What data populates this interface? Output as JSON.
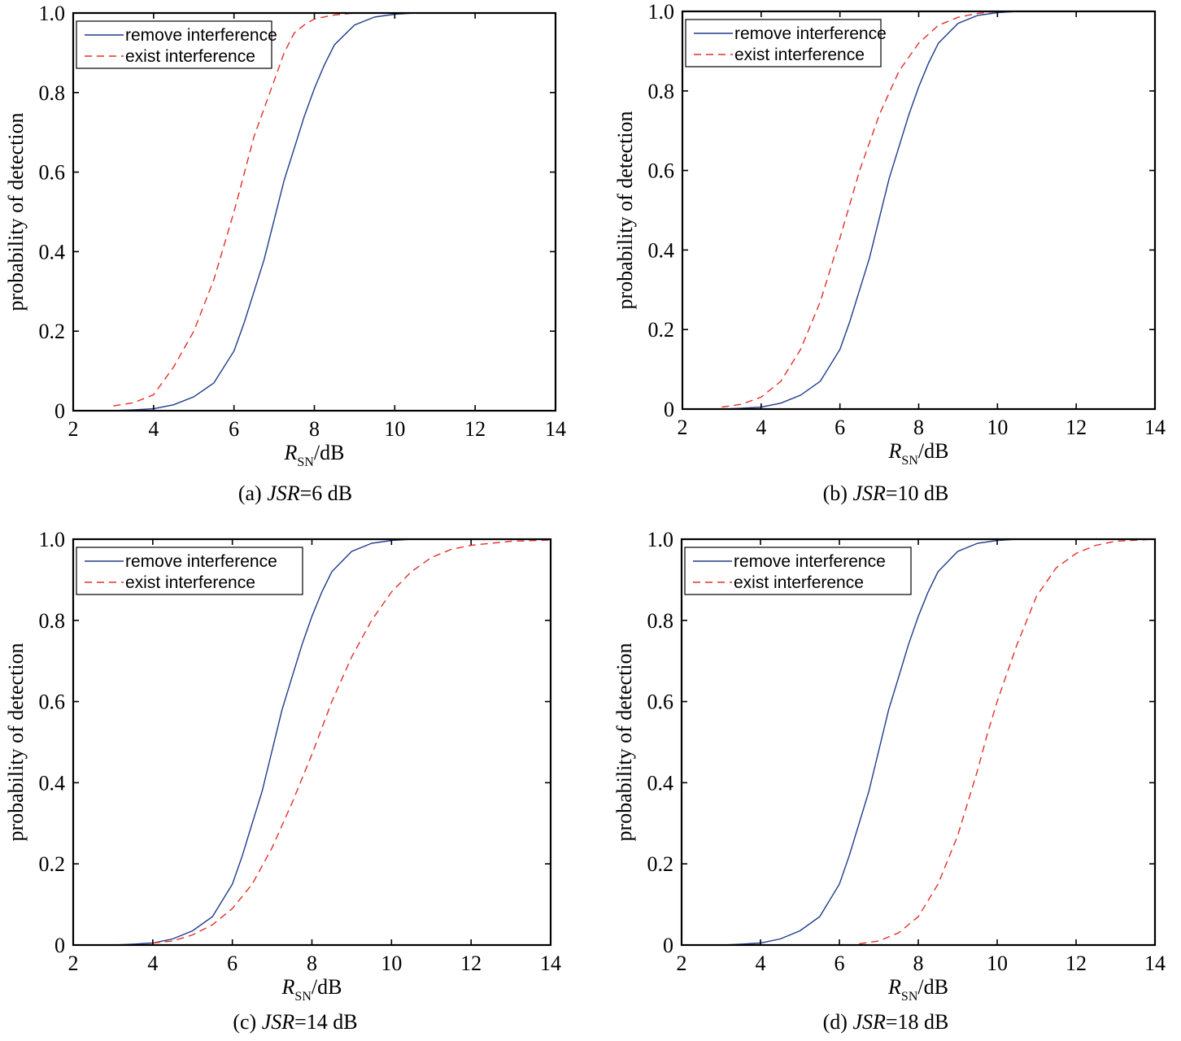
{
  "chart_data": [
    {
      "type": "line",
      "caption_prefix": "(a) ",
      "caption_var": "JSR",
      "caption_suffix": "=6 dB",
      "xlabel_main": "R",
      "xlabel_sub": "SN",
      "xlabel_unit": "/dB",
      "ylabel": "probability of detection",
      "xlim": [
        2,
        14
      ],
      "ylim": [
        0,
        1.0
      ],
      "xticks": [
        "2",
        "4",
        "6",
        "8",
        "10",
        "12",
        "14"
      ],
      "yticks": [
        "0",
        "0.2",
        "0.4",
        "0.6",
        "0.8",
        "1.0"
      ],
      "grid": false,
      "legend": "top-left",
      "series": [
        {
          "name": "remove interference",
          "color": "#1f3a8a",
          "dash": "solid",
          "x": [
            3,
            3.5,
            4,
            4.5,
            5,
            5.5,
            6,
            6.25,
            6.5,
            6.75,
            7,
            7.25,
            7.5,
            7.75,
            8,
            8.25,
            8.5,
            9,
            9.5,
            10,
            10.5,
            11,
            14
          ],
          "y": [
            0,
            0.002,
            0.005,
            0.015,
            0.035,
            0.07,
            0.15,
            0.22,
            0.3,
            0.38,
            0.48,
            0.58,
            0.66,
            0.74,
            0.81,
            0.87,
            0.92,
            0.97,
            0.99,
            0.997,
            1.0,
            1.0,
            1.0
          ]
        },
        {
          "name": "exist interference",
          "color": "#e0302a",
          "dash": "dashed",
          "x": [
            3,
            3.5,
            4,
            4.5,
            5,
            5.5,
            6,
            6.5,
            7,
            7.25,
            7.5,
            7.75,
            8,
            8.5,
            9,
            9.5,
            10,
            14
          ],
          "y": [
            0.012,
            0.02,
            0.04,
            0.11,
            0.2,
            0.33,
            0.5,
            0.69,
            0.83,
            0.9,
            0.95,
            0.97,
            0.985,
            0.995,
            1.0,
            1.0,
            1.0,
            1.0
          ]
        }
      ]
    },
    {
      "type": "line",
      "caption_prefix": "(b) ",
      "caption_var": "JSR",
      "caption_suffix": "=10 dB",
      "xlabel_main": "R",
      "xlabel_sub": "SN",
      "xlabel_unit": "/dB",
      "ylabel": "probability of detection",
      "xlim": [
        2,
        14
      ],
      "ylim": [
        0,
        1.0
      ],
      "xticks": [
        "2",
        "4",
        "6",
        "8",
        "10",
        "12",
        "14"
      ],
      "yticks": [
        "0",
        "0.2",
        "0.4",
        "0.6",
        "0.8",
        "1.0"
      ],
      "grid": false,
      "legend": "top-left",
      "series": [
        {
          "name": "remove interference",
          "color": "#1f3a8a",
          "dash": "solid",
          "x": [
            3,
            3.5,
            4,
            4.5,
            5,
            5.5,
            6,
            6.25,
            6.5,
            6.75,
            7,
            7.25,
            7.5,
            7.75,
            8,
            8.25,
            8.5,
            9,
            9.5,
            10,
            10.5,
            14
          ],
          "y": [
            0,
            0.002,
            0.005,
            0.015,
            0.035,
            0.07,
            0.15,
            0.22,
            0.3,
            0.38,
            0.48,
            0.58,
            0.66,
            0.74,
            0.81,
            0.87,
            0.92,
            0.97,
            0.99,
            0.997,
            1.0,
            1.0
          ]
        },
        {
          "name": "exist interference",
          "color": "#e0302a",
          "dash": "dashed",
          "x": [
            3,
            3.5,
            4,
            4.5,
            5,
            5.5,
            6,
            6.5,
            7,
            7.5,
            8,
            8.5,
            9,
            9.5,
            10,
            14
          ],
          "y": [
            0.005,
            0.012,
            0.03,
            0.07,
            0.15,
            0.27,
            0.43,
            0.6,
            0.74,
            0.85,
            0.92,
            0.965,
            0.985,
            0.995,
            1.0,
            1.0
          ]
        }
      ]
    },
    {
      "type": "line",
      "caption_prefix": "(c) ",
      "caption_var": "JSR",
      "caption_suffix": "=14 dB",
      "xlabel_main": "R",
      "xlabel_sub": "SN",
      "xlabel_unit": "/dB",
      "ylabel": "probability of detection",
      "xlim": [
        2,
        14
      ],
      "ylim": [
        0,
        1.0
      ],
      "xticks": [
        "2",
        "4",
        "6",
        "8",
        "10",
        "12",
        "14"
      ],
      "yticks": [
        "0",
        "0.2",
        "0.4",
        "0.6",
        "0.8",
        "1.0"
      ],
      "grid": false,
      "legend": "top-left",
      "series": [
        {
          "name": "remove interference",
          "color": "#1f3a8a",
          "dash": "solid",
          "x": [
            3,
            3.5,
            4,
            4.5,
            5,
            5.5,
            6,
            6.25,
            6.5,
            6.75,
            7,
            7.25,
            7.5,
            7.75,
            8,
            8.25,
            8.5,
            9,
            9.5,
            10,
            10.5,
            14
          ],
          "y": [
            0,
            0.002,
            0.005,
            0.015,
            0.035,
            0.07,
            0.15,
            0.22,
            0.3,
            0.38,
            0.48,
            0.58,
            0.66,
            0.74,
            0.81,
            0.87,
            0.92,
            0.97,
            0.99,
            0.997,
            1.0,
            1.0
          ]
        },
        {
          "name": "exist interference",
          "color": "#e0302a",
          "dash": "dashed",
          "x": [
            4,
            4.5,
            5,
            5.5,
            6,
            6.5,
            7,
            7.5,
            8,
            8.5,
            9,
            9.5,
            10,
            10.5,
            11,
            11.5,
            12,
            13,
            14
          ],
          "y": [
            0.005,
            0.01,
            0.025,
            0.05,
            0.09,
            0.15,
            0.24,
            0.35,
            0.47,
            0.6,
            0.71,
            0.8,
            0.87,
            0.92,
            0.955,
            0.975,
            0.985,
            0.995,
            0.998
          ]
        }
      ]
    },
    {
      "type": "line",
      "caption_prefix": "(d) ",
      "caption_var": "JSR",
      "caption_suffix": "=18 dB",
      "xlabel_main": "R",
      "xlabel_sub": "SN",
      "xlabel_unit": "/dB",
      "ylabel": "probability of detection",
      "xlim": [
        2,
        14
      ],
      "ylim": [
        0,
        1.0
      ],
      "xticks": [
        "2",
        "4",
        "6",
        "8",
        "10",
        "12",
        "14"
      ],
      "yticks": [
        "0",
        "0.2",
        "0.4",
        "0.6",
        "0.8",
        "1.0"
      ],
      "grid": false,
      "legend": "top-left",
      "series": [
        {
          "name": "remove interference",
          "color": "#1f3a8a",
          "dash": "solid",
          "x": [
            3,
            3.5,
            4,
            4.5,
            5,
            5.5,
            6,
            6.25,
            6.5,
            6.75,
            7,
            7.25,
            7.5,
            7.75,
            8,
            8.25,
            8.5,
            9,
            9.5,
            10,
            10.5,
            14
          ],
          "y": [
            0,
            0.002,
            0.005,
            0.015,
            0.035,
            0.07,
            0.15,
            0.22,
            0.3,
            0.38,
            0.48,
            0.58,
            0.66,
            0.74,
            0.81,
            0.87,
            0.92,
            0.97,
            0.99,
            0.997,
            1.0,
            1.0
          ]
        },
        {
          "name": "exist interference",
          "color": "#e0302a",
          "dash": "dashed",
          "x": [
            6.5,
            7,
            7.5,
            8,
            8.5,
            9,
            9.25,
            9.5,
            9.75,
            10,
            10.5,
            11,
            11.5,
            12,
            12.5,
            13,
            14
          ],
          "y": [
            0.003,
            0.01,
            0.03,
            0.07,
            0.15,
            0.27,
            0.35,
            0.43,
            0.52,
            0.6,
            0.74,
            0.86,
            0.93,
            0.965,
            0.985,
            0.995,
            1.0
          ]
        }
      ]
    }
  ]
}
